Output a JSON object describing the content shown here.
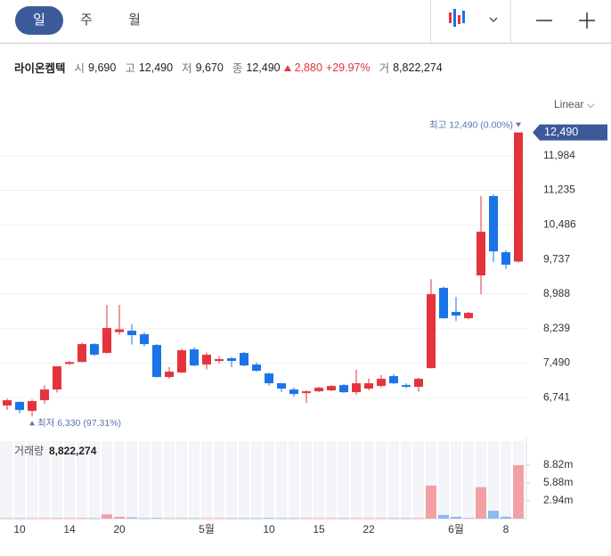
{
  "header": {
    "tabs": [
      "일",
      "주",
      "월"
    ],
    "scale": "Linear",
    "stock": {
      "name": "라이온켐텍",
      "open_label": "시",
      "open": "9,690",
      "high_label": "고",
      "high": "12,490",
      "low_label": "저",
      "low": "9,670",
      "close_label": "종",
      "close": "12,490",
      "change": "2,880",
      "change_pct": "+29.97%",
      "volume_label": "거",
      "volume": "8,822,274"
    }
  },
  "chart_data": {
    "type": "candlestick",
    "categories": [
      null,
      "10",
      null,
      null,
      null,
      "14",
      null,
      null,
      null,
      "20",
      null,
      null,
      null,
      null,
      null,
      null,
      "5월",
      null,
      null,
      null,
      null,
      "10",
      null,
      null,
      null,
      "15",
      null,
      null,
      null,
      "22",
      null,
      null,
      null,
      null,
      null,
      null,
      "6월",
      null,
      null,
      null,
      "8",
      null
    ],
    "open": [
      6567,
      6645,
      6451,
      6683,
      6915,
      7470,
      7514,
      7900,
      7708,
      8160,
      8190,
      8113,
      7880,
      7186,
      7283,
      7785,
      7456,
      7534,
      7592,
      7708,
      7456,
      7263,
      7050,
      6915,
      6837,
      6876,
      6896,
      7011,
      6857,
      6934,
      6992,
      7205,
      7011,
      6973,
      7379,
      9119,
      8597,
      8461,
      9389,
      11110,
      9892,
      9690
    ],
    "high": [
      6720,
      6660,
      6700,
      7010,
      7420,
      7530,
      7930,
      7920,
      8750,
      8750,
      8330,
      8150,
      7900,
      7400,
      7800,
      7830,
      7720,
      7640,
      7620,
      7730,
      7500,
      7280,
      7060,
      6960,
      6900,
      6970,
      7010,
      7030,
      7350,
      7150,
      7230,
      7250,
      7050,
      7170,
      9310,
      9150,
      8920,
      8600,
      11110,
      11150,
      9940,
      12490
    ],
    "low": [
      6470,
      6400,
      6330,
      6600,
      6850,
      7450,
      7500,
      7640,
      7700,
      8100,
      7890,
      7850,
      7180,
      7150,
      7270,
      7420,
      7350,
      7480,
      7400,
      7420,
      7300,
      7000,
      6860,
      6760,
      6620,
      6860,
      6880,
      6840,
      6800,
      6900,
      6960,
      7030,
      6950,
      6870,
      7370,
      8450,
      8400,
      8440,
      8980,
      9680,
      9530,
      9670
    ],
    "close": [
      6683,
      6470,
      6664,
      6915,
      7418,
      7510,
      7900,
      7670,
      8249,
      8220,
      8094,
      7900,
      7186,
      7302,
      7766,
      7437,
      7669,
      7573,
      7534,
      7437,
      7321,
      7050,
      6934,
      6818,
      6876,
      6954,
      6992,
      6857,
      7050,
      7050,
      7147,
      7050,
      6973,
      7147,
      8983,
      8461,
      8519,
      8577,
      10336,
      9911,
      9621,
      12490
    ],
    "volume": [
      50000,
      50000,
      50000,
      50000,
      100000,
      50000,
      100000,
      50000,
      700000,
      300000,
      200000,
      50000,
      100000,
      50000,
      50000,
      50000,
      50000,
      50000,
      50000,
      50000,
      50000,
      100000,
      50000,
      50000,
      50000,
      50000,
      50000,
      50000,
      50000,
      50000,
      50000,
      50000,
      50000,
      50000,
      5450000,
      600000,
      300000,
      100000,
      5200000,
      1300000,
      300000,
      8822274
    ],
    "ylim": [
      5990,
      12850
    ],
    "yticks": [
      {
        "value": 6741,
        "label": "6,741"
      },
      {
        "value": 7490,
        "label": "7,490"
      },
      {
        "value": 8239,
        "label": "8,239"
      },
      {
        "value": 8988,
        "label": "8,988"
      },
      {
        "value": 9737,
        "label": "9,737"
      },
      {
        "value": 10486,
        "label": "10,486"
      },
      {
        "value": 11235,
        "label": "11,235"
      },
      {
        "value": 11984,
        "label": "11,984"
      }
    ],
    "last_price": {
      "value": 12490,
      "label": "12,490"
    },
    "max_label": "최고 12,490 (0.00%)",
    "min_label": "최저 6,330 (97.31%)",
    "volume_title": "거래량",
    "volume_total": "8,822,274",
    "volume_ylim": [
      0,
      12800000
    ],
    "volume_yticks": [
      {
        "value": 2940000,
        "label": "2.94m"
      },
      {
        "value": 5880000,
        "label": "5.88m"
      },
      {
        "value": 8820000,
        "label": "8.82m"
      }
    ],
    "up_color": "#e3343d",
    "down_color": "#1a73e8",
    "up_volume_color": "#f2a0a5",
    "down_volume_color": "#8cb9f0",
    "grid": true
  }
}
